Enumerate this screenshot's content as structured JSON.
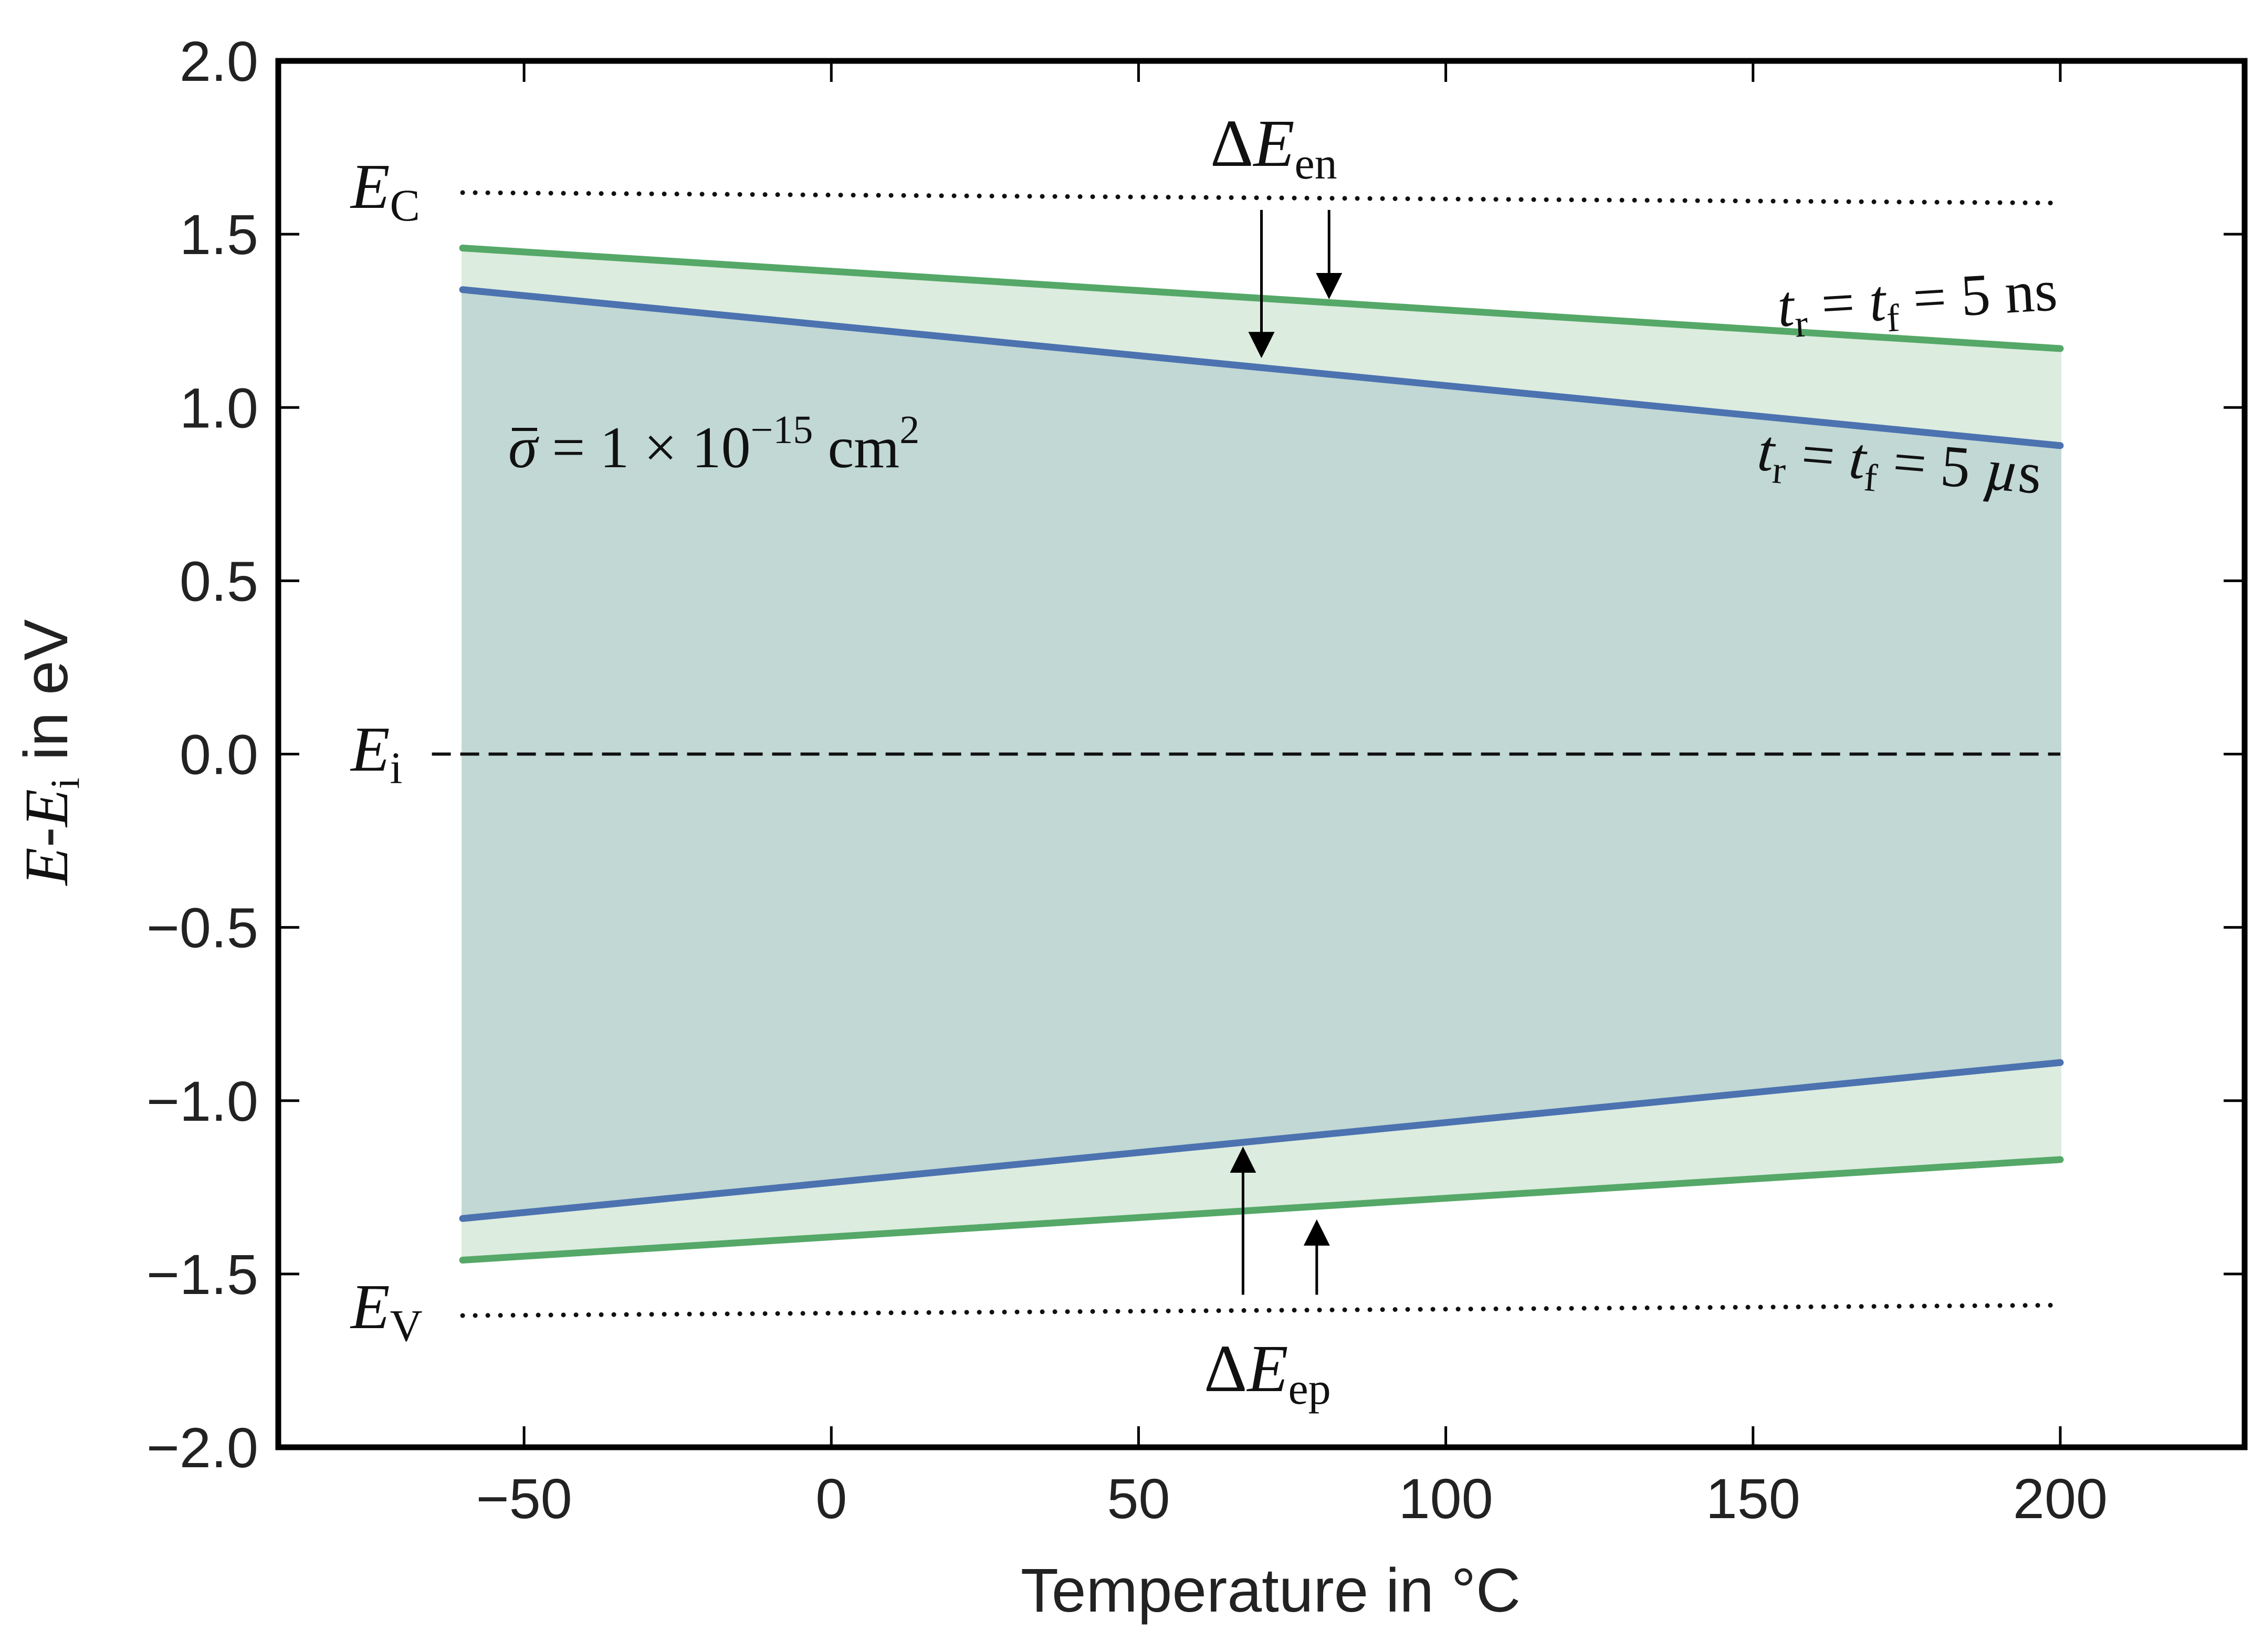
{
  "chart_data": {
    "type": "line",
    "xlabel": "Temperature in °C",
    "ylabel": {
      "main": "E",
      "dash": "-",
      "main2": "E",
      "sub": "i",
      "suffix": " in eV"
    },
    "xlim": [
      -90,
      230
    ],
    "ylim": [
      -2.0,
      2.0
    ],
    "x_ticks": [
      -50,
      0,
      50,
      100,
      150,
      200
    ],
    "x_tick_labels": [
      "−50",
      "0",
      "50",
      "100",
      "150",
      "200"
    ],
    "y_ticks": [
      2.0,
      1.5,
      1.0,
      0.5,
      0.0,
      -0.5,
      -1.0,
      -1.5,
      -2.0
    ],
    "y_tick_labels": [
      "2.0",
      "1.5",
      "1.0",
      "0.5",
      "0.0",
      "−0.5",
      "−1.0",
      "−1.5",
      "−2.0"
    ],
    "x": [
      -60,
      200
    ],
    "series": [
      {
        "name": "t_r = t_f = 5 ns",
        "color": "#55a868",
        "fill": "#dcecdf",
        "upper": [
          1.46,
          1.17
        ],
        "lower": [
          -1.46,
          -1.17
        ]
      },
      {
        "name": "t_r = t_f = 5 µs",
        "color": "#4c72b0",
        "fill": "#c1d8d4",
        "upper": [
          1.34,
          0.89
        ],
        "lower": [
          -1.34,
          -0.89
        ]
      }
    ],
    "reference_lines": [
      {
        "name": "E_C",
        "x": [
          -60,
          200
        ],
        "y": [
          1.62,
          1.59
        ],
        "style": "dotted"
      },
      {
        "name": "E_i",
        "x": [
          -65,
          200
        ],
        "y": [
          0.0,
          0.0
        ],
        "style": "dashed"
      },
      {
        "name": "E_V",
        "x": [
          -60,
          200
        ],
        "y": [
          -1.62,
          -1.59
        ],
        "style": "dotted"
      }
    ],
    "arrows": [
      {
        "name": "dEen-left",
        "x": 70,
        "y_from": 1.57,
        "y_to": 1.15
      },
      {
        "name": "dEen-right",
        "x": 81,
        "y_from": 1.57,
        "y_to": 1.32
      },
      {
        "name": "dEep-left",
        "x": 67,
        "y_from": -1.56,
        "y_to": -1.14
      },
      {
        "name": "dEep-right",
        "x": 79,
        "y_from": -1.56,
        "y_to": -1.35
      }
    ],
    "labels": {
      "E_C": {
        "main": "E",
        "sub": "C"
      },
      "E_i": {
        "main": "E",
        "sub": "i"
      },
      "E_V": {
        "main": "E",
        "sub": "V"
      },
      "dEen": {
        "delta": "Δ",
        "main": "E",
        "sub": "en"
      },
      "dEep": {
        "delta": "Δ",
        "main": "E",
        "sub": "ep"
      },
      "sigma": {
        "symbol": "σ",
        "text": " = 1 × 10",
        "exp": "−15",
        "unit": " cm",
        "unit_exp": "2"
      },
      "ns": {
        "t1": "t",
        "s1": "r",
        "eq": " = ",
        "t2": "t",
        "s2": "f",
        "val": " = 5 ns"
      },
      "us": {
        "t1": "t",
        "s1": "r",
        "eq": " = ",
        "t2": "t",
        "s2": "f",
        "val": " = 5 ",
        "mu": "µ",
        "unit": "s"
      }
    }
  }
}
